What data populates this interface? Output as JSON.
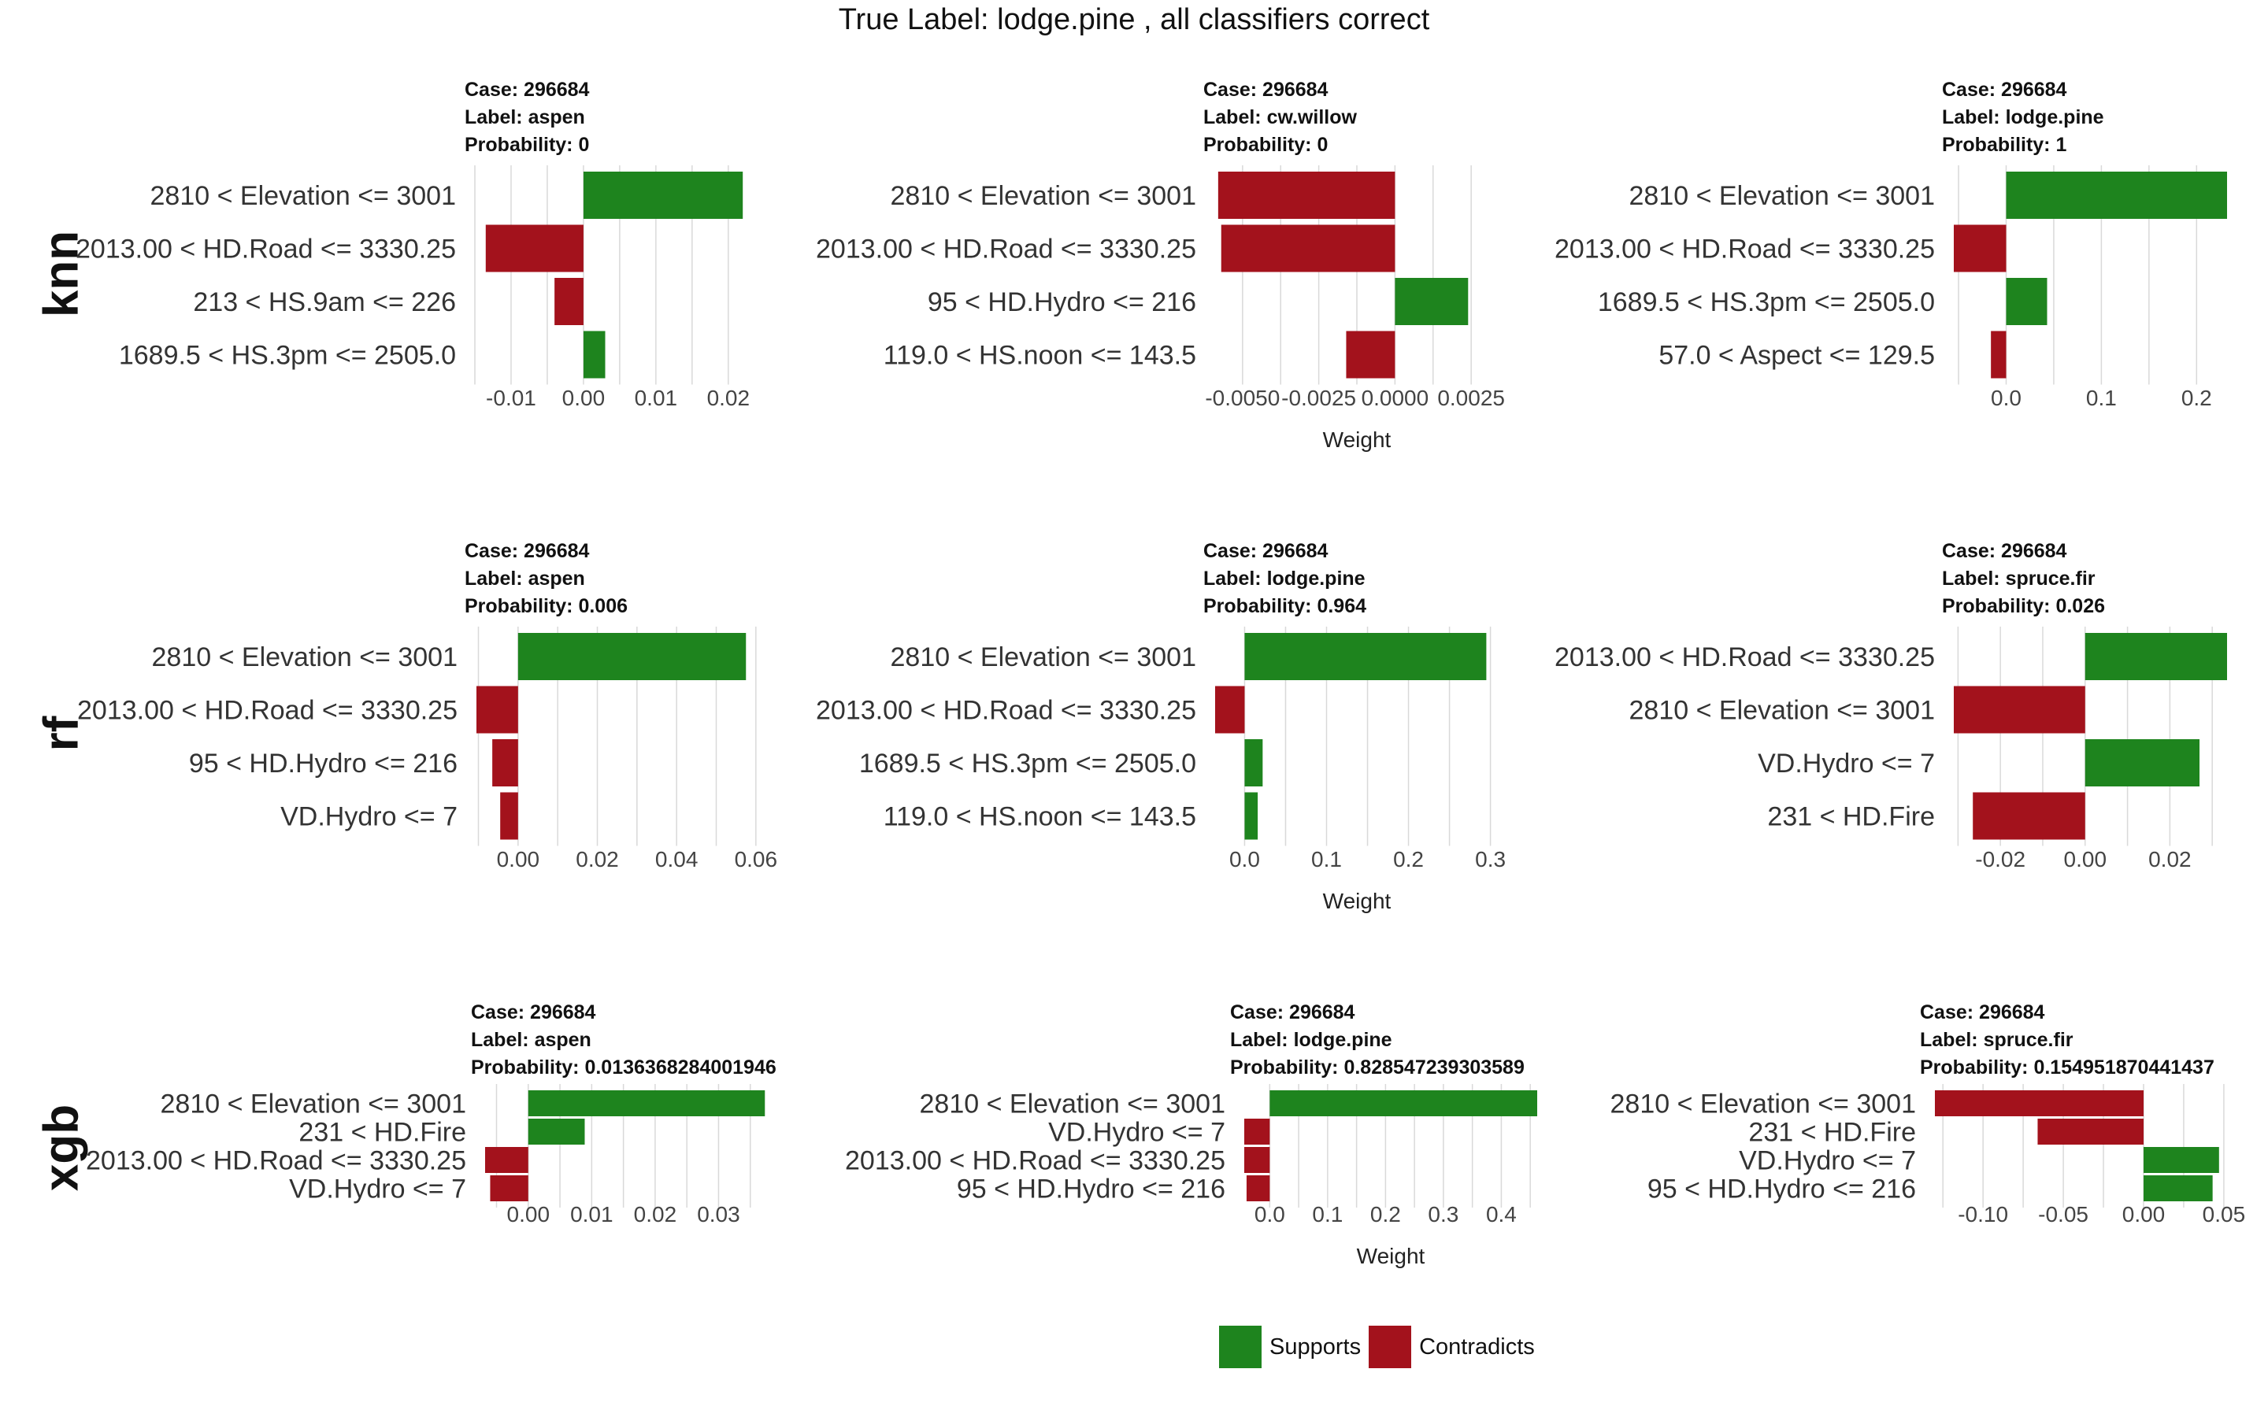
{
  "title": "True Label: lodge.pine , all classifiers correct",
  "colors": {
    "supports": "#1e841e",
    "contradicts": "#a3121c",
    "grid": "#d9d9d9"
  },
  "legend": {
    "supports_label": "Supports",
    "contradicts_label": "Contradicts"
  },
  "rows": [
    "knn",
    "rf",
    "xgb"
  ],
  "chart_data": [
    {
      "type": "bar",
      "row": "knn",
      "col": 0,
      "case_text": "Case: 296684",
      "label_text": "Label: aspen",
      "probability_text": "Probability: 0",
      "categories": [
        "2810 < Elevation <= 3001",
        "2013.00 < HD.Road <= 3330.25",
        "213 < HS.9am <= 226",
        "1689.5 < HS.3pm <= 2505.0"
      ],
      "values": [
        0.022,
        -0.0135,
        -0.004,
        0.003
      ],
      "xlim": [
        -0.015,
        0.0235
      ],
      "ticks": [
        -0.01,
        0.0,
        0.01,
        0.02
      ],
      "tick_labels": [
        "-0.01",
        "0.00",
        "0.01",
        "0.02"
      ],
      "xlabel": ""
    },
    {
      "type": "bar",
      "row": "knn",
      "col": 1,
      "case_text": "Case: 296684",
      "label_text": "Label: cw.willow",
      "probability_text": "Probability: 0",
      "categories": [
        "2810 < Elevation <= 3001",
        "2013.00 < HD.Road <= 3330.25",
        "95 < HD.Hydro <= 216",
        "119.0 < HS.noon <= 143.5"
      ],
      "values": [
        -0.0058,
        -0.0057,
        0.0024,
        -0.0016
      ],
      "xlim": [
        -0.0059,
        0.0034
      ],
      "ticks": [
        -0.005,
        -0.0025,
        0.0,
        0.0025
      ],
      "tick_labels": [
        "-0.0050",
        "-0.0025",
        "0.0000",
        "0.0025"
      ],
      "xlabel": "Weight"
    },
    {
      "type": "bar",
      "row": "knn",
      "col": 2,
      "case_text": "Case: 296684",
      "label_text": "Label: lodge.pine",
      "probability_text": "Probability: 1",
      "categories": [
        "2810 < Elevation <= 3001",
        "2013.00 < HD.Road <= 3330.25",
        "1689.5 < HS.3pm <= 2505.0",
        "57.0 < Aspect <= 129.5"
      ],
      "values": [
        0.232,
        -0.055,
        0.043,
        -0.016
      ],
      "xlim": [
        -0.055,
        0.232
      ],
      "ticks": [
        0.0,
        0.1,
        0.2
      ],
      "tick_labels": [
        "0.0",
        "0.1",
        "0.2"
      ],
      "xlabel": ""
    },
    {
      "type": "bar",
      "row": "rf",
      "col": 0,
      "case_text": "Case: 296684",
      "label_text": "Label: aspen",
      "probability_text": "Probability: 0.006",
      "categories": [
        "2810 < Elevation <= 3001",
        "2013.00 < HD.Road <= 3330.25",
        "95 < HD.Hydro <= 216",
        "VD.Hydro <= 7"
      ],
      "values": [
        0.0575,
        -0.0105,
        -0.0065,
        -0.0045
      ],
      "xlim": [
        -0.0105,
        0.065
      ],
      "ticks": [
        0.0,
        0.02,
        0.04,
        0.06
      ],
      "tick_labels": [
        "0.00",
        "0.02",
        "0.04",
        "0.06"
      ],
      "xlabel": ""
    },
    {
      "type": "bar",
      "row": "rf",
      "col": 1,
      "case_text": "Case: 296684",
      "label_text": "Label: lodge.pine",
      "probability_text": "Probability: 0.964",
      "categories": [
        "2810 < Elevation <= 3001",
        "2013.00 < HD.Road <= 3330.25",
        "1689.5 < HS.3pm <= 2505.0",
        "119.0 < HS.noon <= 143.5"
      ],
      "values": [
        0.295,
        -0.036,
        0.022,
        0.016
      ],
      "xlim": [
        -0.036,
        0.31
      ],
      "ticks": [
        0.0,
        0.1,
        0.2,
        0.3
      ],
      "tick_labels": [
        "0.0",
        "0.1",
        "0.2",
        "0.3"
      ],
      "xlabel": "Weight"
    },
    {
      "type": "bar",
      "row": "rf",
      "col": 2,
      "case_text": "Case: 296684",
      "label_text": "Label: spruce.fir",
      "probability_text": "Probability: 0.026",
      "categories": [
        "2013.00 < HD.Road <= 3330.25",
        "2810 < Elevation <= 3001",
        "VD.Hydro <= 7",
        "231 < HD.Fire"
      ],
      "values": [
        0.0335,
        -0.031,
        0.027,
        -0.0265
      ],
      "xlim": [
        -0.031,
        0.0335
      ],
      "ticks": [
        -0.02,
        0.0,
        0.02
      ],
      "tick_labels": [
        "-0.02",
        "0.00",
        "0.02"
      ],
      "xlabel": ""
    },
    {
      "type": "bar",
      "row": "xgb",
      "col": 0,
      "case_text": "Case: 296684",
      "label_text": "Label: aspen",
      "probability_text": "Probability: 0.0136368284001946",
      "categories": [
        "2810 < Elevation <= 3001",
        "231 < HD.Fire",
        "2013.00 < HD.Road <= 3330.25",
        "VD.Hydro <= 7"
      ],
      "values": [
        0.0373,
        0.0089,
        -0.0068,
        -0.006
      ],
      "xlim": [
        -0.0068,
        0.0395
      ],
      "ticks": [
        0.0,
        0.01,
        0.02,
        0.03
      ],
      "tick_labels": [
        "0.00",
        "0.01",
        "0.02",
        "0.03"
      ],
      "xlabel": ""
    },
    {
      "type": "bar",
      "row": "xgb",
      "col": 1,
      "case_text": "Case: 296684",
      "label_text": "Label: lodge.pine",
      "probability_text": "Probability: 0.828547239303589",
      "categories": [
        "2810 < Elevation <= 3001",
        "VD.Hydro <= 7",
        "2013.00 < HD.Road <= 3330.25",
        "95 < HD.Hydro <= 216"
      ],
      "values": [
        0.462,
        -0.044,
        -0.044,
        -0.04
      ],
      "xlim": [
        -0.044,
        0.462
      ],
      "ticks": [
        0.0,
        0.1,
        0.2,
        0.3,
        0.4
      ],
      "tick_labels": [
        "0.0",
        "0.1",
        "0.2",
        "0.3",
        "0.4"
      ],
      "xlabel": "Weight"
    },
    {
      "type": "bar",
      "row": "xgb",
      "col": 2,
      "case_text": "Case: 296684",
      "label_text": "Label: spruce.fir",
      "probability_text": "Probability: 0.154951870441437",
      "categories": [
        "2810 < Elevation <= 3001",
        "231 < HD.Fire",
        "VD.Hydro <= 7",
        "95 < HD.Hydro <= 216"
      ],
      "values": [
        -0.13,
        -0.066,
        0.047,
        0.043
      ],
      "xlim": [
        -0.13,
        0.052
      ],
      "ticks": [
        -0.1,
        -0.05,
        0.0,
        0.05
      ],
      "tick_labels": [
        "-0.10",
        "-0.05",
        "0.00",
        "0.05"
      ],
      "xlabel": ""
    }
  ]
}
